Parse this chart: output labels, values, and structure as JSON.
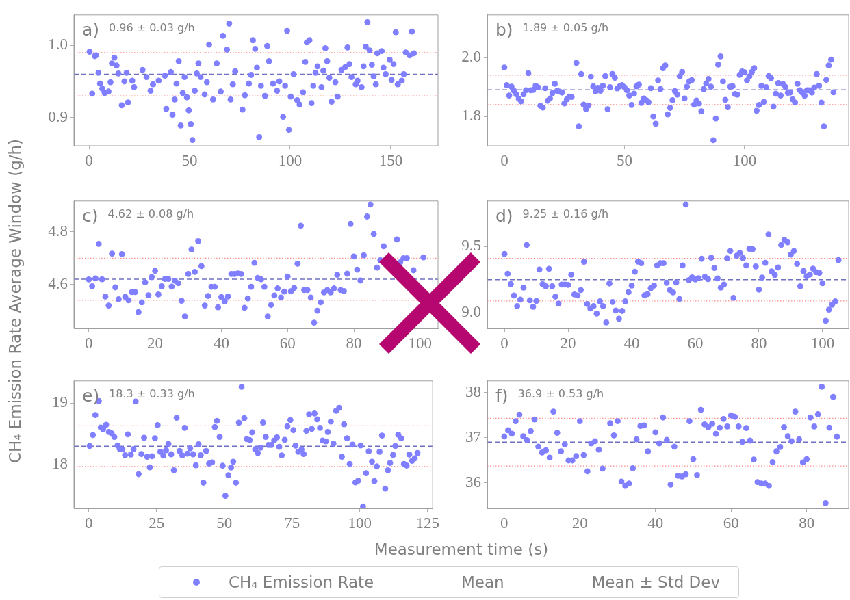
{
  "chart_data": [
    {
      "type": "scatter",
      "annotations": [
        "a)",
        "0.96 ± 0.03 g/h"
      ],
      "xlim": [
        -7.5,
        173.5
      ],
      "xticks": [
        0,
        50,
        100,
        150
      ],
      "ylim": [
        0.861,
        1.042
      ],
      "yticks": [
        0.9,
        {
          "value": 1,
          "label": "1.0"
        }
      ],
      "grid": false,
      "marker": "circle",
      "ref_lines": [
        {
          "axis": "y",
          "value": 0.96,
          "color": "#7070c0",
          "line_style": "dashed"
        },
        {
          "axis": "y",
          "value": 0.99,
          "color": "#ff8a8a",
          "line_style": "dotted"
        },
        {
          "axis": "y",
          "value": 0.93,
          "color": "#ff8a8a",
          "line_style": "dotted"
        }
      ],
      "series": [
        {
          "color": "#7f7fff",
          "x": [
            0.3,
            1.6,
            2.9,
            3.5,
            4.7,
            5.5,
            6.6,
            7.8,
            9.7,
            10.7,
            11.4,
            12.6,
            13.7,
            14.6,
            16.3,
            17.6,
            18.7,
            19.4,
            21.5,
            22.4,
            26.6,
            28.6,
            30.6,
            31.8,
            34.6,
            37.7,
            38.4,
            40.7,
            41.5,
            42.6,
            43.5,
            44.6,
            45.6,
            46.6,
            47.5,
            48.7,
            49.6,
            50.6,
            51.4,
            52.6,
            53.6,
            54.4,
            55.5,
            57.5,
            58.6,
            59.7,
            61.7,
            63.5,
            65.5,
            66.6,
            68.6,
            69.7,
            70.4,
            71.5,
            72.7,
            76.3,
            77.5,
            79.5,
            80.6,
            81.5,
            82.6,
            83.5,
            84.6,
            85.5,
            87.5,
            88.6,
            89.5,
            91.5,
            93.5,
            94.6,
            96.5,
            97.5,
            98.5,
            99.4,
            100.3,
            101.7,
            103.5,
            104.7,
            106.4,
            107.5,
            108.3,
            109.6,
            110.6,
            111.5,
            112.6,
            113.6,
            115.6,
            116.5,
            117.5,
            118.4,
            119.5,
            120.6,
            122.5,
            123.6,
            125.5,
            127.4,
            128.5,
            129.5,
            130.5,
            132.6,
            133.5,
            135.5,
            136.5,
            137.6,
            138.4,
            139.5,
            140.6,
            141.5,
            142.6,
            143.3,
            145.5,
            146.4,
            147.5,
            149.5,
            150.4,
            151.4,
            152.5,
            153.5,
            155.5,
            156.5,
            157.5,
            159.4,
            160.5,
            161.5
          ],
          "values": [
            0.991,
            0.933,
            0.985,
            0.986,
            0.962,
            0.947,
            0.94,
            0.934,
            0.936,
            0.949,
            0.975,
            0.983,
            0.972,
            0.961,
            0.917,
            0.95,
            0.962,
            0.921,
            0.951,
            0.942,
            0.966,
            0.956,
            0.937,
            0.946,
            0.951,
            0.958,
            0.912,
            0.963,
            0.904,
            0.925,
            0.947,
            0.978,
            0.889,
            0.934,
            0.956,
            0.928,
            0.91,
            0.891,
            0.869,
            0.937,
            0.961,
            0.975,
            0.956,
            0.932,
            0.949,
            1.001,
            0.925,
            0.975,
            0.936,
            1.013,
            0.994,
            1.03,
            0.925,
            0.946,
            0.964,
            0.911,
            0.931,
            0.947,
            0.959,
            1.007,
            0.995,
            0.969,
            0.873,
            0.944,
            0.93,
            0.999,
            0.978,
            0.947,
            0.937,
            0.95,
            0.901,
            0.944,
            1.02,
            0.883,
            0.929,
            0.96,
            0.924,
            0.918,
            0.935,
            0.977,
            1.004,
            1.007,
            0.92,
            0.944,
            0.962,
            0.971,
            0.942,
            0.965,
            0.996,
            0.978,
            0.955,
            0.922,
            0.949,
            0.929,
            0.966,
            0.97,
            0.997,
            0.974,
            0.956,
            0.946,
            0.951,
            0.942,
            0.971,
            0.998,
            1.032,
            0.993,
            0.973,
            0.957,
            0.946,
            0.989,
            0.992,
            0.969,
            0.96,
            0.98,
            0.952,
            0.974,
            1.018,
            0.946,
            0.951,
            0.96,
            0.99,
            0.986,
            1.019,
            0.989
          ]
        }
      ]
    },
    {
      "type": "scatter",
      "annotations": [
        "b)",
        "1.89 ± 0.05 g/h"
      ],
      "xlim": [
        -7.1,
        143.3
      ],
      "xticks": [
        0,
        50,
        100
      ],
      "ylim": [
        1.7,
        2.145
      ],
      "yticks": [
        1.8,
        {
          "value": 2,
          "label": "2.0"
        }
      ],
      "grid": false,
      "marker": "circle",
      "ref_lines": [
        {
          "axis": "y",
          "value": 1.89,
          "color": "#7070c0",
          "line_style": "dashed"
        },
        {
          "axis": "y",
          "value": 1.94,
          "color": "#ff8a8a",
          "line_style": "dotted"
        },
        {
          "axis": "y",
          "value": 1.84,
          "color": "#ff8a8a",
          "line_style": "dotted"
        }
      ],
      "series": [
        {
          "color": "#7f7fff",
          "x": [
            0,
            1,
            2,
            3,
            4,
            5,
            6,
            7,
            8,
            9,
            10,
            11,
            12,
            13,
            14,
            15,
            16,
            17,
            18,
            19,
            20,
            21,
            22,
            23,
            24,
            25,
            26,
            27,
            28,
            30,
            31,
            32,
            33,
            34,
            35,
            36,
            37,
            38,
            39,
            40,
            41,
            42,
            43,
            44,
            45,
            46,
            47,
            48,
            49,
            50,
            51,
            52,
            53,
            54,
            55,
            56,
            57,
            58,
            59,
            60,
            61,
            62,
            63,
            64,
            65,
            66,
            67,
            68,
            69,
            70,
            71,
            72,
            73,
            74,
            75,
            76,
            77,
            78,
            79,
            80,
            81,
            82,
            83,
            84,
            85,
            86,
            87,
            88,
            89,
            90,
            91,
            92,
            93,
            94,
            95,
            96,
            97,
            98,
            99,
            100,
            101,
            102,
            103,
            104,
            105,
            106,
            107,
            108,
            109,
            110,
            111,
            112,
            113,
            114,
            115,
            116,
            117,
            118,
            119,
            120,
            121,
            122,
            123,
            124,
            125,
            126,
            127,
            128,
            129,
            130,
            131,
            132,
            133,
            134,
            135,
            136,
            137
          ],
          "values": [
            1.966,
            1.906,
            1.871,
            1.901,
            1.887,
            1.875,
            1.86,
            1.851,
            1.875,
            1.889,
            1.947,
            1.889,
            1.89,
            1.904,
            1.899,
            1.836,
            1.83,
            1.896,
            1.853,
            1.861,
            1.879,
            1.911,
            1.887,
            1.884,
            1.881,
            1.844,
            1.858,
            1.867,
            1.866,
            1.982,
            1.766,
            1.944,
            1.84,
            1.825,
            1.837,
            1.935,
            1.902,
            1.885,
            1.897,
            1.887,
            1.904,
            1.937,
            1.824,
            1.899,
            1.944,
            1.931,
            1.895,
            1.902,
            1.906,
            1.899,
            1.889,
            1.871,
            1.839,
            1.877,
            1.902,
            1.908,
            1.846,
            1.861,
            1.855,
            1.848,
            1.896,
            1.8,
            1.775,
            1.922,
            1.893,
            1.964,
            1.973,
            1.807,
            1.829,
            1.855,
            1.886,
            1.874,
            1.936,
            1.951,
            1.861,
            1.901,
            1.919,
            1.923,
            1.84,
            1.854,
            1.844,
            1.817,
            1.893,
            1.912,
            1.927,
            1.901,
            1.719,
            1.793,
            1.976,
            2.004,
            1.919,
            1.856,
            1.831,
            1.901,
            1.903,
            1.876,
            1.874,
            1.941,
            1.953,
            1.95,
            1.922,
            1.936,
            1.951,
            1.964,
            1.819,
            1.839,
            1.904,
            1.849,
            1.899,
            1.937,
            1.93,
            1.833,
            1.877,
            1.913,
            1.871,
            1.91,
            1.9,
            1.88,
            1.881,
            1.858,
            1.847,
            1.911,
            1.889,
            1.881,
            1.87,
            1.889,
            1.889,
            1.881,
            1.898,
            1.944,
            1.904,
            1.847,
            1.766,
            1.924,
            1.973,
            1.993,
            1.882
          ]
        }
      ]
    },
    {
      "type": "scatter",
      "annotations": [
        "c)",
        "4.62 ± 0.08 g/h"
      ],
      "ylabel": "CH₄ Emission Rate Average Window (g/h)",
      "xlim": [
        -4.5,
        105.4
      ],
      "xticks": [
        0,
        20,
        40,
        60,
        80,
        100
      ],
      "ylim": [
        4.433,
        4.917
      ],
      "yticks": [
        4.6,
        4.8
      ],
      "grid": false,
      "marker": "circle",
      "ref_lines": [
        {
          "axis": "y",
          "value": 4.62,
          "color": "#7070c0",
          "line_style": "dashed"
        },
        {
          "axis": "y",
          "value": 4.7,
          "color": "#ff8a8a",
          "line_style": "dotted"
        },
        {
          "axis": "y",
          "value": 4.54,
          "color": "#ff8a8a",
          "line_style": "dotted"
        }
      ],
      "series": [
        {
          "color": "#7f7fff",
          "x": [
            0,
            1,
            2,
            3,
            4,
            5,
            6,
            7,
            8,
            9,
            10,
            11,
            12,
            13,
            14,
            15,
            16,
            17,
            18,
            19,
            20,
            21,
            22,
            23,
            24,
            25,
            26,
            27,
            28,
            29,
            30,
            31,
            32,
            33,
            34,
            35,
            36,
            37,
            38,
            39,
            40,
            41,
            42,
            43,
            44,
            45,
            46,
            47,
            48,
            49,
            50,
            51,
            52,
            53,
            54,
            55,
            56,
            57,
            58,
            59,
            60,
            61,
            62,
            63,
            64,
            65,
            66,
            67,
            68,
            69,
            70,
            71,
            72,
            73,
            74,
            75,
            76,
            77,
            78,
            79,
            80,
            81,
            82,
            83,
            84,
            85,
            86,
            87,
            88,
            89,
            93,
            94,
            95,
            96,
            98,
            101
          ],
          "values": [
            4.619,
            4.593,
            4.623,
            4.754,
            4.62,
            4.554,
            4.52,
            4.717,
            4.589,
            4.544,
            4.715,
            4.553,
            4.54,
            4.571,
            4.571,
            4.495,
            4.532,
            4.608,
            4.559,
            4.628,
            4.652,
            4.562,
            4.593,
            4.621,
            4.621,
            4.592,
            4.614,
            4.605,
            4.538,
            4.478,
            4.64,
            4.733,
            4.648,
            4.765,
            4.67,
            4.52,
            4.556,
            4.591,
            4.591,
            4.513,
            4.552,
            4.536,
            4.554,
            4.64,
            4.64,
            4.642,
            4.64,
            4.511,
            4.547,
            4.591,
            4.682,
            4.625,
            4.62,
            4.591,
            4.478,
            4.522,
            4.558,
            4.585,
            4.55,
            4.573,
            4.63,
            4.574,
            4.587,
            4.679,
            4.823,
            4.579,
            4.579,
            4.55,
            4.455,
            4.5,
            4.532,
            4.57,
            4.579,
            4.57,
            4.585,
            4.637,
            4.579,
            4.575,
            4.641,
            4.83,
            4.706,
            4.656,
            4.615,
            4.711,
            4.858,
            4.904,
            4.792,
            4.664,
            4.692,
            4.745,
            4.771,
            4.684,
            4.7,
            4.7,
            4.654,
            4.703
          ]
        }
      ]
    },
    {
      "type": "scatter",
      "annotations": [
        "d)",
        "9.25 ± 0.16 g/h"
      ],
      "xlim": [
        -5.4,
        108.2
      ],
      "xticks": [
        0,
        20,
        40,
        60,
        80,
        100
      ],
      "ylim": [
        8.884,
        9.841
      ],
      "yticks": [
        {
          "value": 9,
          "label": "9.0"
        },
        9.5
      ],
      "grid": false,
      "marker": "circle",
      "ref_lines": [
        {
          "axis": "y",
          "value": 9.25,
          "color": "#7070c0",
          "line_style": "dashed"
        },
        {
          "axis": "y",
          "value": 9.41,
          "color": "#ff8a8a",
          "line_style": "dotted"
        },
        {
          "axis": "y",
          "value": 9.09,
          "color": "#ff8a8a",
          "line_style": "dotted"
        }
      ],
      "series": [
        {
          "color": "#7f7fff",
          "x": [
            0,
            1,
            2,
            3,
            4,
            5,
            6,
            7,
            8,
            9,
            10,
            11,
            12,
            13,
            14,
            15,
            16,
            17,
            18,
            19,
            20,
            21,
            22,
            23,
            24,
            25,
            26,
            27,
            28,
            29,
            30,
            31,
            32,
            33,
            34,
            35,
            36,
            37,
            38,
            39,
            40,
            41,
            42,
            43,
            44,
            45,
            46,
            47,
            48,
            49,
            50,
            51,
            52,
            53,
            54,
            55,
            56,
            57,
            58,
            59,
            60,
            61,
            62,
            63,
            64,
            65,
            66,
            67,
            68,
            69,
            70,
            71,
            72,
            73,
            74,
            75,
            76,
            77,
            78,
            79,
            80,
            81,
            82,
            83,
            84,
            85,
            86,
            87,
            88,
            89,
            90,
            91,
            92,
            93,
            94,
            95,
            96,
            97,
            98,
            99,
            100,
            101,
            102,
            103,
            104,
            105
          ],
          "values": [
            9.443,
            9.294,
            9.217,
            9.131,
            9.051,
            9.1,
            9.191,
            9.511,
            9.095,
            9.047,
            9.09,
            9.327,
            9.216,
            9.201,
            9.332,
            9.201,
            9.123,
            9.07,
            9.214,
            9.214,
            9.211,
            9.288,
            9.139,
            9.131,
            9.172,
            9.384,
            9.067,
            9.034,
            9.051,
            8.995,
            9.087,
            9.051,
            8.928,
            9.222,
            9.083,
            9.018,
            8.956,
            9.015,
            9.087,
            9.157,
            9.206,
            9.31,
            9.386,
            9.374,
            9.132,
            9.142,
            9.186,
            9.206,
            9.358,
            9.374,
            9.374,
            9.227,
            9.172,
            9.154,
            9.229,
            9.105,
            9.358,
            9.815,
            9.247,
            9.268,
            9.252,
            9.261,
            9.407,
            9.271,
            9.255,
            9.415,
            9.338,
            9.26,
            9.19,
            9.214,
            9.41,
            9.466,
            9.113,
            9.43,
            9.451,
            9.413,
            9.358,
            9.482,
            9.479,
            9.35,
            9.175,
            9.266,
            9.377,
            9.59,
            9.312,
            9.286,
            9.342,
            9.511,
            9.549,
            9.531,
            9.438,
            9.466,
            9.369,
            9.201,
            9.315,
            9.275,
            9.289,
            9.333,
            9.306,
            9.301,
            9.224,
            8.941,
            9.025,
            9.062,
            9.087,
            9.397
          ]
        }
      ]
    },
    {
      "type": "scatter",
      "annotations": [
        "e)",
        "18.3 ± 0.33 g/h"
      ],
      "xlabel": "Measurement time (s)",
      "legend": "bottom",
      "xlim": [
        -5.5,
        126.9
      ],
      "xticks": [
        0,
        25,
        50,
        75,
        100,
        125
      ],
      "ylim": [
        17.29,
        19.36
      ],
      "yticks": [
        18,
        19
      ],
      "grid": false,
      "marker": "circle",
      "ref_lines": [
        {
          "axis": "y",
          "value": 18.3,
          "color": "#7070c0",
          "line_style": "dashed",
          "label": "Mean"
        },
        {
          "axis": "y",
          "value": 18.63,
          "color": "#ff8a8a",
          "line_style": "dotted",
          "label": "Mean ± Std Dev"
        },
        {
          "axis": "y",
          "value": 17.97,
          "color": "#ff8a8a",
          "line_style": "dotted"
        }
      ],
      "series": [
        {
          "name": "CH₄ Emission Rate",
          "color": "#7f7fff",
          "x": [
            0.3,
            1.5,
            2.4,
            3.7,
            4.4,
            5.3,
            6.4,
            7.4,
            8.4,
            9.4,
            10.6,
            11.4,
            12.4,
            13.4,
            14.4,
            15.5,
            16.5,
            17.3,
            18.4,
            19.4,
            20.4,
            21.5,
            22.5,
            23.3,
            24.4,
            25.4,
            26.4,
            27.5,
            28.5,
            29.4,
            30.4,
            31.4,
            32.4,
            33.5,
            34.5,
            35.4,
            36.4,
            37.4,
            38.5,
            39.5,
            40.5,
            41.3,
            42.3,
            43.3,
            44.4,
            45.5,
            46.5,
            47.3,
            48.3,
            49.4,
            50.4,
            51.5,
            52.5,
            53.3,
            54.3,
            55.4,
            56.4,
            57.4,
            58.3,
            59.4,
            60.3,
            61.4,
            62.4,
            63.4,
            64.3,
            65.3,
            66.3,
            67.4,
            68.4,
            69.4,
            70.3,
            71.2,
            72.3,
            73.3,
            74.4,
            75.5,
            76.3,
            77.3,
            78.5,
            79.3,
            80.3,
            81.3,
            82.3,
            83.3,
            84.3,
            85.3,
            86.3,
            87.5,
            88.2,
            89.3,
            90.3,
            91.3,
            92.4,
            93.4,
            94.2,
            95.3,
            96.3,
            97.3,
            98.4,
            99.4,
            100.3,
            101.2,
            102.3,
            103.3,
            104.5,
            105.4,
            106.3,
            107.3,
            108.2,
            109.4,
            110.4,
            111.2,
            112.3,
            113.1,
            114.2,
            115.3,
            116.3,
            117.3,
            118.3,
            119.3,
            120.3,
            121.3
          ],
          "values": [
            18.304,
            18.48,
            18.806,
            19.033,
            18.604,
            18.579,
            18.648,
            18.531,
            18.509,
            18.451,
            18.311,
            18.256,
            18.249,
            18.154,
            18.491,
            18.165,
            18.253,
            19.026,
            17.846,
            18.172,
            18.436,
            18.128,
            17.956,
            18.136,
            18.429,
            18.641,
            18.209,
            18.147,
            18.234,
            18.337,
            18.168,
            17.908,
            18.762,
            18.223,
            18.15,
            18.597,
            18.179,
            18.264,
            18.168,
            17.989,
            18.33,
            18.154,
            17.707,
            18.223,
            18.018,
            18.037,
            18.612,
            18.711,
            18.451,
            17.982,
            17.495,
            17.828,
            17.952,
            18.048,
            17.707,
            18.681,
            19.264,
            18.755,
            18.414,
            18.399,
            18.524,
            18.249,
            18.19,
            18.275,
            18.685,
            18.451,
            18.319,
            18.319,
            18.392,
            18.443,
            18.289,
            18.15,
            18.403,
            18.623,
            18.725,
            18.56,
            18.308,
            18.209,
            18.245,
            18.172,
            18.549,
            18.817,
            18.582,
            18.832,
            18.736,
            18.597,
            18.392,
            18.377,
            18.531,
            18.7,
            18.341,
            18.875,
            18.923,
            18.128,
            18.656,
            18.429,
            18.011,
            18.326,
            17.711,
            17.74,
            18.311,
            17.322,
            17.861,
            18.216,
            18.048,
            17.733,
            17.971,
            18.209,
            18.473,
            17.612,
            17.908,
            18.029,
            18.158,
            18.304,
            18.487,
            18.429,
            18.011,
            17.985,
            18.165,
            18.062,
            18.103,
            18.19
          ]
        }
      ]
    },
    {
      "type": "scatter",
      "annotations": [
        "f)",
        "36.9 ± 0.53 g/h"
      ],
      "xlim": [
        -4.5,
        91.1
      ],
      "xticks": [
        0,
        20,
        40,
        60,
        80
      ],
      "ylim": [
        35.43,
        38.26
      ],
      "yticks": [
        36,
        37,
        38
      ],
      "grid": false,
      "marker": "circle",
      "ref_lines": [
        {
          "axis": "y",
          "value": 36.9,
          "color": "#7070c0",
          "line_style": "dashed"
        },
        {
          "axis": "y",
          "value": 37.43,
          "color": "#ff8a8a",
          "line_style": "dotted"
        },
        {
          "axis": "y",
          "value": 36.37,
          "color": "#ff8a8a",
          "line_style": "dotted"
        }
      ],
      "series": [
        {
          "color": "#7f7fff",
          "x": [
            0,
            1,
            2,
            3,
            4,
            5,
            6,
            7,
            8,
            9,
            10,
            11,
            12,
            13,
            14,
            15,
            16,
            17,
            18,
            19,
            20,
            21,
            22,
            23,
            24,
            25,
            26,
            28,
            29,
            30,
            31,
            32,
            33,
            34,
            35,
            36,
            37,
            38,
            40,
            41,
            42,
            43,
            44,
            45,
            46,
            47,
            48,
            49,
            50,
            51,
            52,
            53,
            54,
            55,
            56,
            57,
            58,
            59,
            60,
            61,
            62,
            63,
            64,
            65,
            66,
            67,
            68,
            69,
            70,
            71,
            72,
            73,
            74,
            75,
            76,
            77,
            78,
            79,
            80,
            81,
            82,
            83,
            84,
            85,
            86,
            87,
            88
          ],
          "values": [
            37.026,
            37.165,
            37.089,
            37.367,
            37.511,
            37.031,
            36.945,
            37.146,
            37.405,
            36.801,
            36.671,
            36.719,
            36.556,
            37.578,
            37.108,
            36.695,
            36.849,
            36.494,
            36.494,
            36.59,
            37.367,
            36.614,
            36.254,
            36.873,
            36.921,
            36.734,
            36.312,
            37.319,
            37.05,
            37.367,
            36.024,
            35.928,
            35.981,
            36.321,
            36.964,
            37.261,
            37.271,
            36.695,
            37.118,
            36.873,
            37.448,
            36.95,
            35.957,
            36.801,
            36.153,
            36.139,
            36.187,
            37.367,
            36.523,
            36.168,
            37.616,
            37.295,
            37.233,
            37.309,
            37.084,
            37.223,
            37.415,
            37.247,
            37.496,
            37.463,
            37.247,
            36.906,
            37.213,
            36.935,
            36.513,
            36.014,
            35.981,
            35.981,
            35.928,
            36.456,
            36.695,
            36.791,
            37.233,
            37.031,
            36.921,
            37.578,
            36.964,
            36.451,
            36.523,
            37.448,
            37.247,
            37.52,
            38.129,
            35.544,
            37.223,
            37.904,
            37.022
          ]
        }
      ]
    }
  ]
}
